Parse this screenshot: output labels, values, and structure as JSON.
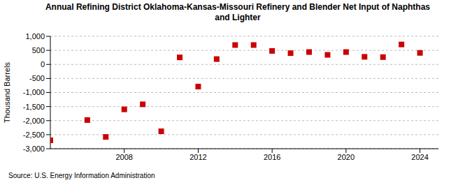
{
  "chart_data": {
    "type": "scatter",
    "title": "Annual Refining District Oklahoma-Kansas-Missouri Refinery and Blender Net Input of Naphthas and Lighter",
    "y_label": "Thousand Barrels",
    "source": "Source: U.S. Energy Information Administration",
    "x": [
      2004,
      2006,
      2007,
      2008,
      2009,
      2010,
      2011,
      2012,
      2013,
      2014,
      2015,
      2016,
      2017,
      2018,
      2019,
      2020,
      2021,
      2022,
      2023,
      2024
    ],
    "values": [
      -2700,
      -1980,
      -2580,
      -1600,
      -1420,
      -2380,
      250,
      -790,
      190,
      690,
      690,
      480,
      400,
      440,
      340,
      440,
      270,
      260,
      710,
      410
    ],
    "color": "#cc0000",
    "marker": "square",
    "xlim": [
      2004,
      2025
    ],
    "xticks": [
      2008,
      2012,
      2016,
      2020,
      2024
    ],
    "ylim": [
      -3000,
      1000
    ],
    "yticks": [
      {
        "value": -3000,
        "label": "-3,000"
      },
      {
        "value": -2500,
        "label": "-2,500"
      },
      {
        "value": -2000,
        "label": "-2,000"
      },
      {
        "value": -1500,
        "label": "-1,500"
      },
      {
        "value": -1000,
        "label": "-1,000"
      },
      {
        "value": -500,
        "label": "-500"
      },
      0,
      500,
      {
        "value": 1000,
        "label": "1,000"
      }
    ],
    "grid": true
  }
}
